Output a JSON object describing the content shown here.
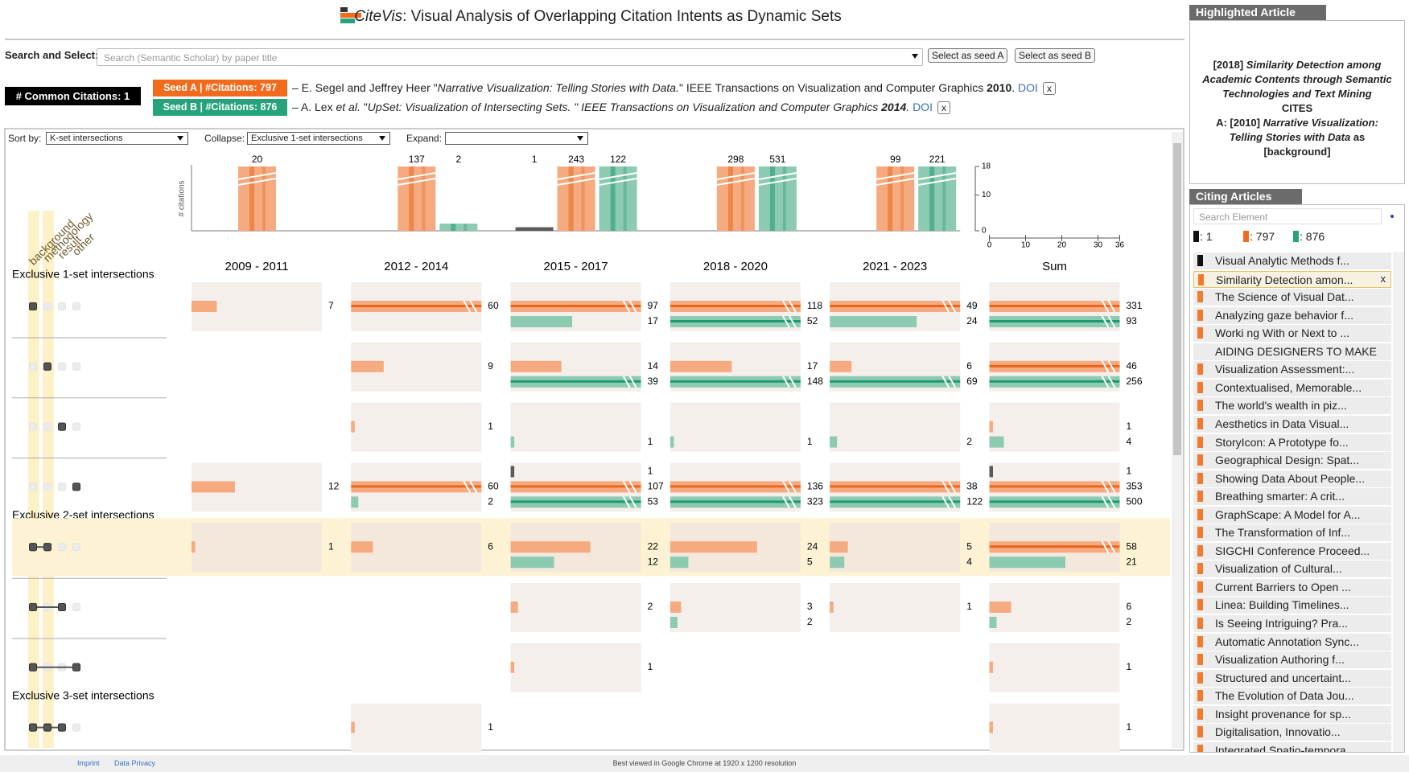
{
  "header": {
    "title_app": "CiteVis",
    "title_rest": ": Visual Analysis of Overlapping Citation Intents as Dynamic Sets"
  },
  "search": {
    "label": "Search and Select:",
    "placeholder": "Search (Semantic Scholar) by paper title",
    "button_a": "Select as seed A",
    "button_b": "Select as seed B"
  },
  "common": {
    "label": "# Common Citations: 1"
  },
  "seeds": [
    {
      "label": "Seed A | #Citations: 797",
      "color": "#f26b1d",
      "parts": [
        {
          "text": "– E. Segel and Jeffrey Heer \""
        },
        {
          "text": "Narrative Visualization: Telling Stories with Data.",
          "style": "i"
        },
        {
          "text": "\" IEEE Transactions on Visualization and Computer Graphics "
        },
        {
          "text": "2010",
          "style": "b"
        },
        {
          "text": ". "
        },
        {
          "text": "DOI",
          "style": "link"
        }
      ],
      "close": "x"
    },
    {
      "label": "Seed B | #Citations: 876",
      "color": "#27a37b",
      "parts": [
        {
          "text": "– A. Lex "
        },
        {
          "text": "et al.",
          "style": "i"
        },
        {
          "text": " \""
        },
        {
          "text": "UpSet: Visualization of Intersecting Sets.",
          "style": "i"
        },
        {
          "text": " \" IEEE Transactions on Visualization and Computer Graphics ",
          "style": "i"
        },
        {
          "text": "2014",
          "style": "bi"
        },
        {
          "text": ". ",
          "style": "i"
        },
        {
          "text": "DOI",
          "style": "link"
        }
      ],
      "close": "x"
    }
  ],
  "controls": {
    "sort_label": "Sort by:",
    "sort_value": "K-set intersections",
    "collapse_label": "Collapse:",
    "collapse_value": "Exclusive 1-set intersections",
    "expand_label": "Expand:"
  },
  "chart": {
    "y_label": "# citations",
    "dimensions": [
      "background",
      "methodology",
      "result",
      "other"
    ],
    "periods": [
      "2009 - 2011",
      "2012 - 2014",
      "2015 - 2017",
      "2018 - 2020",
      "2021 - 2023",
      "Sum"
    ],
    "histogram": [
      {
        "a": 20
      },
      {
        "a": 137,
        "b": 2
      },
      {
        "c": 1,
        "a": 243,
        "b": 122
      },
      {
        "a": 298,
        "b": 531
      },
      {
        "a": 99,
        "b": 221
      }
    ],
    "ylim": [
      0,
      18
    ],
    "yticks": [
      0,
      10,
      18
    ],
    "xlim": [
      0,
      36
    ],
    "xticks": [
      0,
      10,
      20,
      30,
      36
    ],
    "colors": {
      "c": "#5a5a5a",
      "a": "#f5aa7f",
      "b": "#8ccab1",
      "a_dark": "#e8661f",
      "b_dark": "#1f9a70"
    },
    "groups": [
      {
        "label": "Exclusive 1-set intersections",
        "rows": [
          {
            "set": [
              1,
              0,
              0,
              0
            ],
            "cells": [
              {
                "a": 7
              },
              {
                "a": 60
              },
              {
                "a": 97,
                "b": 17
              },
              {
                "a": 118,
                "b": 52
              },
              {
                "a": 49,
                "b": 24
              },
              {
                "a": 331,
                "b": 93
              }
            ]
          },
          {
            "set": [
              0,
              1,
              0,
              0
            ],
            "cells": [
              null,
              {
                "a": 9
              },
              {
                "a": 14,
                "b": 39
              },
              {
                "a": 17,
                "b": 148
              },
              {
                "a": 6,
                "b": 69
              },
              {
                "a": 46,
                "b": 256
              }
            ]
          },
          {
            "set": [
              0,
              0,
              1,
              0
            ],
            "cells": [
              null,
              {
                "a": 1
              },
              {
                "b": 1
              },
              {
                "b": 1
              },
              {
                "b": 2
              },
              {
                "a": 1,
                "b": 4
              }
            ]
          },
          {
            "set": [
              0,
              0,
              0,
              1
            ],
            "cells": [
              {
                "a": 12
              },
              {
                "a": 60,
                "b": 2
              },
              {
                "c": 1,
                "a": 107,
                "b": 53
              },
              {
                "a": 136,
                "b": 323
              },
              {
                "a": 38,
                "b": 122
              },
              {
                "c": 1,
                "a": 353,
                "b": 500
              }
            ]
          }
        ]
      },
      {
        "label": "Exclusive 2-set intersections",
        "rows": [
          {
            "set": [
              1,
              1,
              0,
              0
            ],
            "highlighted": true,
            "cells": [
              {
                "a": 1
              },
              {
                "a": 6
              },
              {
                "a": 22,
                "b": 12
              },
              {
                "a": 24,
                "b": 5
              },
              {
                "a": 5,
                "b": 4
              },
              {
                "a": 58,
                "b": 21
              }
            ]
          },
          {
            "set": [
              1,
              0,
              1,
              0
            ],
            "cells": [
              null,
              null,
              {
                "a": 2
              },
              {
                "a": 3,
                "b": 2
              },
              {
                "a": 1
              },
              {
                "a": 6,
                "b": 2
              }
            ]
          },
          {
            "set": [
              1,
              0,
              0,
              1
            ],
            "cells": [
              null,
              null,
              {
                "a": 1
              },
              null,
              null,
              {
                "a": 1
              }
            ]
          }
        ]
      },
      {
        "label": "Exclusive 3-set intersections",
        "rows": [
          {
            "set": [
              1,
              1,
              1,
              0
            ],
            "cells": [
              null,
              {
                "a": 1
              },
              null,
              null,
              null,
              {
                "a": 1
              }
            ]
          }
        ]
      }
    ]
  },
  "panel": {
    "highlighted_title": "Highlighted Article",
    "highlighted": [
      [
        {
          "text": "[2018] "
        },
        {
          "text": "Similarity Detection among Academic Contents through Semantic Technologies and Text Mining",
          "style": "i"
        }
      ],
      [
        {
          "text": "CITES"
        }
      ],
      [
        {
          "text": "A: [2010] "
        },
        {
          "text": "Narrative Visualization: Telling Stories with Data",
          "style": "i"
        },
        {
          "text": " as [background]"
        }
      ]
    ],
    "citing_title": "Citing Articles",
    "search_placeholder": "Search Element",
    "legend": [
      {
        "label": ": 1",
        "color": "#111111"
      },
      {
        "label": ": 797",
        "color": "#f26b1d"
      },
      {
        "label": ": 876",
        "color": "#27a37b"
      }
    ],
    "items": [
      {
        "text": "Visual Analytic Methods f...",
        "marker": "#111111"
      },
      {
        "text": "Similarity Detection amon...",
        "marker": "#f07a2e",
        "selected": true,
        "close": "x"
      },
      {
        "text": "The Science of Visual Dat...",
        "marker": "#f07a2e"
      },
      {
        "text": "Analyzing gaze behavior f...",
        "marker": "#f07a2e"
      },
      {
        "text": "Worki ng With or Next to ...",
        "marker": "#f07a2e"
      },
      {
        "text": "AIDING DESIGNERS TO MAKE"
      },
      {
        "text": "Visualization Assessment:...",
        "marker": "#f07a2e"
      },
      {
        "text": "Contextualised, Memorable...",
        "marker": "#f07a2e"
      },
      {
        "text": "The world's wealth in piz...",
        "marker": "#f07a2e"
      },
      {
        "text": "Aesthetics in Data Visual...",
        "marker": "#f07a2e"
      },
      {
        "text": "StoryIcon: A Prototype fo...",
        "marker": "#f07a2e"
      },
      {
        "text": "Geographical Design: Spat...",
        "marker": "#f07a2e"
      },
      {
        "text": "Showing Data About People...",
        "marker": "#f07a2e"
      },
      {
        "text": "Breathing smarter: A crit...",
        "marker": "#f07a2e"
      },
      {
        "text": "GraphScape: A Model for A...",
        "marker": "#f07a2e"
      },
      {
        "text": "The Transformation of Inf...",
        "marker": "#f07a2e"
      },
      {
        "text": "SIGCHI Conference Proceed...",
        "marker": "#f07a2e"
      },
      {
        "text": "Visualization of Cultural...",
        "marker": "#f07a2e"
      },
      {
        "text": "Current Barriers to Open ...",
        "marker": "#f07a2e"
      },
      {
        "text": "Linea: Building Timelines...",
        "marker": "#f07a2e"
      },
      {
        "text": "Is Seeing Intriguing? Pra...",
        "marker": "#f07a2e"
      },
      {
        "text": "Automatic Annotation Sync...",
        "marker": "#f07a2e"
      },
      {
        "text": "Visualization Authoring f...",
        "marker": "#f07a2e"
      },
      {
        "text": "Structured and uncertaint...",
        "marker": "#f07a2e"
      },
      {
        "text": "The Evolution of Data Jou...",
        "marker": "#f07a2e"
      },
      {
        "text": "Insight provenance for sp...",
        "marker": "#f07a2e"
      },
      {
        "text": "Digitalisation, Innovatio...",
        "marker": "#f07a2e"
      },
      {
        "text": "Integrated Spatio-tempora...",
        "marker": "#f07a2e"
      }
    ]
  },
  "footer": {
    "imprint": "Imprint",
    "privacy": "Data Privacy",
    "note": "Best viewed in Google Chrome at 1920 x 1200 resolution"
  }
}
